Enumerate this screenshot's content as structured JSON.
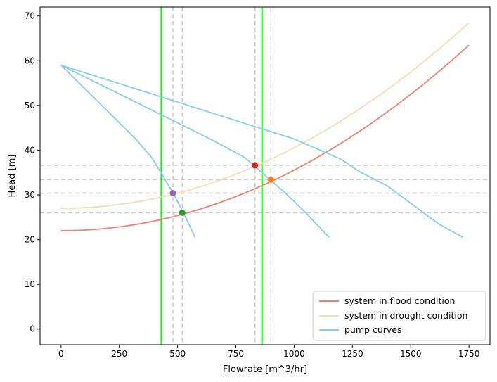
{
  "chart_data": {
    "type": "line",
    "title": "",
    "xlabel": "Flowrate [m^3/hr]",
    "ylabel": "Head [m]",
    "xlim": [
      -90,
      1840
    ],
    "ylim": [
      -3.5,
      72
    ],
    "xticks": [
      0,
      250,
      500,
      750,
      1000,
      1250,
      1500,
      1750
    ],
    "yticks": [
      0,
      10,
      20,
      30,
      40,
      50,
      60,
      70
    ],
    "grid": false,
    "legend_position": "lower-right",
    "series": [
      {
        "name": "system in flood condition",
        "kind": "system-curve",
        "color": "#f08070",
        "equation": "H = 22 + k*Q^2",
        "static_head": 22,
        "x_range": [
          0,
          1750
        ],
        "end_head": 63.5
      },
      {
        "name": "system in drought condition",
        "kind": "system-curve",
        "color": "#f5deb3",
        "equation": "H = 27 + k*Q^2",
        "static_head": 27,
        "x_range": [
          0,
          1750
        ],
        "end_head": 68.5
      },
      {
        "name": "pump curves",
        "kind": "pump-curves",
        "color": "#87ceeb",
        "curves": [
          [
            [
              0,
              59
            ],
            [
              320,
              42.5
            ],
            [
              390,
              38.3
            ],
            [
              480,
              30.5
            ],
            [
              525,
              26
            ],
            [
              575,
              20.5
            ]
          ],
          [
            [
              0,
              59
            ],
            [
              640,
              42.5
            ],
            [
              790,
              38.3
            ],
            [
              960,
              30.5
            ],
            [
              1050,
              26
            ],
            [
              1150,
              20.5
            ]
          ],
          [
            [
              0,
              59
            ],
            [
              1000,
              42.5
            ],
            [
              1200,
              38
            ],
            [
              1280,
              35.2
            ],
            [
              1400,
              32
            ],
            [
              1620,
              23.5
            ],
            [
              1725,
              20.5
            ]
          ]
        ]
      }
    ],
    "operating_points": [
      {
        "x": 832,
        "y": 36.6,
        "color": "#d62728"
      },
      {
        "x": 900,
        "y": 33.4,
        "color": "#ff7f0e"
      },
      {
        "x": 480,
        "y": 30.4,
        "color": "#9467bd"
      },
      {
        "x": 520,
        "y": 26.0,
        "color": "#2ca02c"
      }
    ],
    "reference_lines": {
      "vertical_green": [
        430,
        862
      ],
      "vertical_dashed": [
        480,
        520,
        832,
        900
      ],
      "horizontal_dashed": [
        36.6,
        33.4,
        30.4,
        26.0
      ],
      "green_color": "#00ff00",
      "dashed_color": "#cccccc"
    }
  }
}
